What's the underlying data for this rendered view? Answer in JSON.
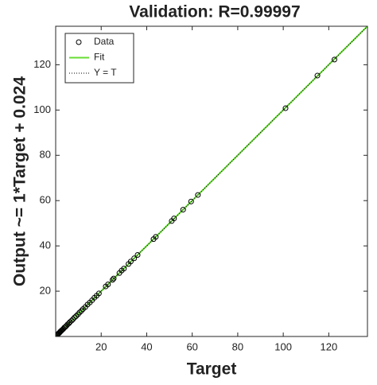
{
  "chart_data": {
    "type": "scatter",
    "title": "Validation: R=0.99997",
    "x_label": "Target",
    "y_label": "Output ~= 1*Target + 0.024",
    "xlim": [
      0,
      137
    ],
    "ylim": [
      0,
      137
    ],
    "xticks": [
      20,
      40,
      60,
      80,
      100,
      120
    ],
    "yticks": [
      20,
      40,
      60,
      80,
      100,
      120
    ],
    "grid": false,
    "legend": "upper left",
    "series": [
      {
        "name": "Data",
        "style": "marker",
        "color": "#000000",
        "x": [
          0.5,
          0.8,
          1,
          1.2,
          1.5,
          1.8,
          2,
          2.3,
          2.6,
          3,
          3.4,
          3.8,
          4.2,
          4.7,
          5.2,
          5.8,
          6.3,
          7,
          7.6,
          8.3,
          9,
          9.8,
          10.5,
          11.3,
          12,
          13,
          14,
          15,
          16,
          17,
          18,
          19,
          22,
          23,
          25,
          25.5,
          28,
          29,
          30,
          32,
          33,
          34.5,
          36,
          43,
          44,
          51,
          52,
          56,
          59.5,
          62.5,
          101,
          115,
          122.5
        ],
        "values": [
          0.5,
          0.9,
          1,
          1.3,
          1.5,
          1.8,
          2.1,
          2.3,
          2.7,
          3,
          3.4,
          3.9,
          4.2,
          4.7,
          5.3,
          5.8,
          6.4,
          7,
          7.6,
          8.4,
          9,
          9.8,
          10.6,
          11.3,
          12.1,
          13,
          14.1,
          15,
          16,
          17.1,
          18,
          19,
          22.1,
          23,
          25,
          25.6,
          28,
          29.1,
          30,
          32,
          33.1,
          34.5,
          36,
          43,
          44,
          51,
          52.1,
          56,
          59.6,
          62.5,
          100.8,
          115.2,
          122.3
        ]
      },
      {
        "name": "Fit",
        "style": "solid",
        "color": "#66dd33",
        "x": [
          0,
          137
        ],
        "values": [
          0.024,
          137.024
        ]
      },
      {
        "name": "Y = T",
        "style": "dotted",
        "color": "#000000",
        "x": [
          0,
          137
        ],
        "values": [
          0,
          137
        ]
      }
    ]
  }
}
